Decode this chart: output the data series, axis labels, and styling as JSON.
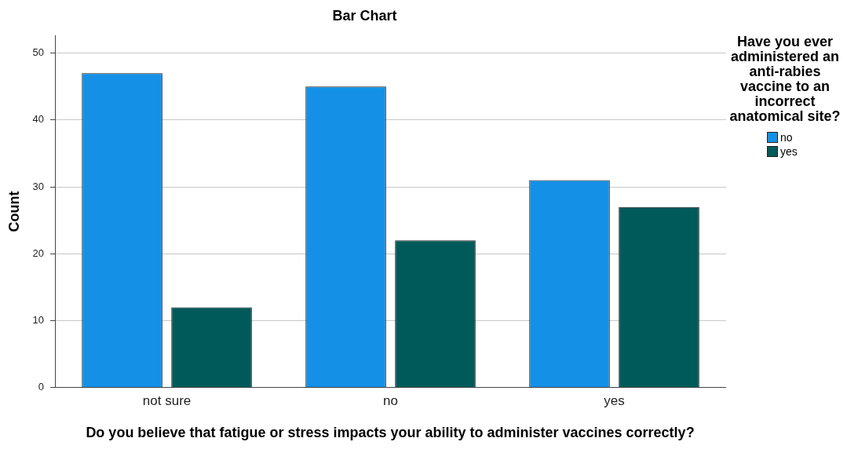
{
  "chart_data": {
    "type": "bar",
    "title": "Bar Chart",
    "xlabel": "Do you believe that fatigue or stress impacts your ability to administer vaccines correctly?",
    "ylabel": "Count",
    "legend_title": "Have you ever administered an anti-rabies vaccine to an incorrect anatomical site?",
    "categories": [
      "not sure",
      "no",
      "yes"
    ],
    "series": [
      {
        "name": "no",
        "color": "#1490e6",
        "values": [
          47,
          45,
          31
        ]
      },
      {
        "name": "yes",
        "color": "#005a5a",
        "values": [
          12,
          22,
          27
        ]
      }
    ],
    "ylim": [
      0,
      52.6
    ],
    "yticks": [
      0,
      10,
      20,
      30,
      40,
      50
    ],
    "grid": "y",
    "legend": "right"
  }
}
